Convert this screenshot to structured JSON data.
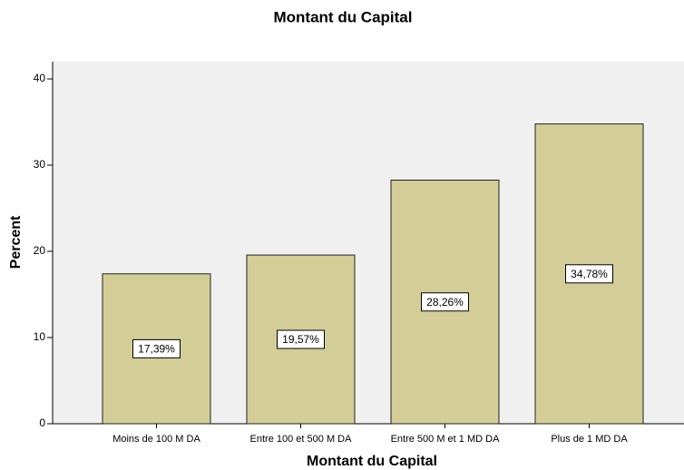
{
  "chart_data": {
    "type": "bar",
    "title": "Montant du Capital",
    "x_label": "Montant du Capital",
    "y_label": "Percent",
    "categories": [
      "Moins de 100 M DA",
      "Entre 100 et 500 M DA",
      "Entre 500 M et 1 MD DA",
      "Plus de 1 MD DA"
    ],
    "values": [
      17.39,
      19.57,
      28.26,
      34.78
    ],
    "value_labels": [
      "17,39%",
      "19,57%",
      "28,26%",
      "34,78%"
    ],
    "color": "#d3ce97",
    "ylim": [
      0,
      42
    ],
    "yticks": [
      0,
      10,
      20,
      30,
      40
    ]
  }
}
